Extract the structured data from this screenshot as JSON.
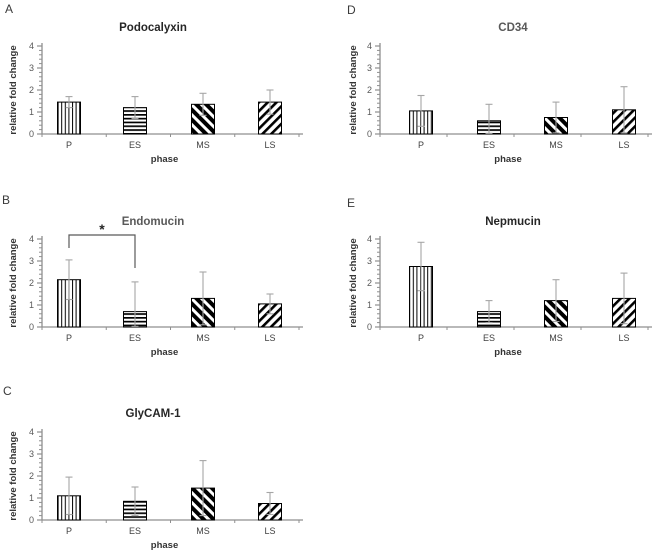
{
  "figure_background": "#ffffff",
  "colors": {
    "axis_line": "#8f8f8f",
    "error_bar": "#a6a6a6",
    "tick_label": "#595959",
    "category_label": "#404040",
    "axis_title": "#333333",
    "bar_fill": "#ffffff",
    "bar_stroke": "#000000",
    "significance_bracket": "#595959",
    "title_dark": "#262626",
    "title_gray": "#595959"
  },
  "chart_data": [
    {
      "type": "bar",
      "panel": "A",
      "title": "Podocalyxin",
      "title_color": "#262626",
      "categories": [
        "P",
        "ES",
        "MS",
        "LS"
      ],
      "values": [
        1.45,
        1.2,
        1.35,
        1.45
      ],
      "errors": [
        0.25,
        0.5,
        0.5,
        0.55
      ],
      "bar_patterns": [
        "vertical-stripes",
        "horizontal-stripes",
        "diagonal-down-bold-stripes",
        "diagonal-up-stripes"
      ],
      "xlabel": "phase",
      "ylabel": "relative fold change",
      "ylim": [
        0,
        4
      ],
      "yticks": [
        0,
        1,
        2,
        3,
        4
      ],
      "minor_tick_step": 0.2,
      "grid": false,
      "legend": false
    },
    {
      "type": "bar",
      "panel": "B",
      "title": "Endomucin",
      "title_color": "#595959",
      "categories": [
        "P",
        "ES",
        "MS",
        "LS"
      ],
      "values": [
        2.15,
        0.7,
        1.3,
        1.05
      ],
      "errors": [
        0.9,
        1.35,
        1.2,
        0.45
      ],
      "bar_patterns": [
        "vertical-stripes",
        "horizontal-stripes",
        "diagonal-down-bold-stripes",
        "diagonal-up-stripes"
      ],
      "xlabel": "phase",
      "ylabel": "relative fold change",
      "ylim": [
        0,
        4
      ],
      "yticks": [
        0,
        1,
        2,
        3,
        4
      ],
      "minor_tick_step": 0.2,
      "grid": false,
      "legend": false,
      "significance": {
        "from": "P",
        "to": "ES",
        "label": "*"
      }
    },
    {
      "type": "bar",
      "panel": "C",
      "title": "GlyCAM-1",
      "title_color": "#262626",
      "categories": [
        "P",
        "ES",
        "MS",
        "LS"
      ],
      "values": [
        1.1,
        0.85,
        1.45,
        0.75
      ],
      "errors": [
        0.85,
        0.65,
        1.25,
        0.5
      ],
      "bar_patterns": [
        "vertical-stripes",
        "horizontal-stripes",
        "diagonal-down-bold-stripes",
        "diagonal-up-stripes"
      ],
      "xlabel": "phase",
      "ylabel": "relative fold change",
      "ylim": [
        0,
        4
      ],
      "yticks": [
        0,
        1,
        2,
        3,
        4
      ],
      "minor_tick_step": 0.2,
      "grid": false,
      "legend": false
    },
    {
      "type": "bar",
      "panel": "D",
      "title": "CD34",
      "title_color": "#595959",
      "categories": [
        "P",
        "ES",
        "MS",
        "LS"
      ],
      "values": [
        1.05,
        0.6,
        0.75,
        1.1
      ],
      "errors": [
        0.7,
        0.75,
        0.7,
        1.05
      ],
      "bar_patterns": [
        "vertical-stripes",
        "horizontal-stripes",
        "diagonal-down-bold-stripes",
        "diagonal-up-stripes"
      ],
      "xlabel": "phase",
      "ylabel": "relative fold change",
      "ylim": [
        0,
        4
      ],
      "yticks": [
        0,
        1,
        2,
        3,
        4
      ],
      "minor_tick_step": 0.2,
      "grid": false,
      "legend": false
    },
    {
      "type": "bar",
      "panel": "E",
      "title": "Nepmucin",
      "title_color": "#262626",
      "categories": [
        "P",
        "ES",
        "MS",
        "LS"
      ],
      "values": [
        2.75,
        0.7,
        1.2,
        1.3
      ],
      "errors": [
        1.1,
        0.5,
        0.95,
        1.15
      ],
      "bar_patterns": [
        "vertical-stripes",
        "horizontal-stripes",
        "diagonal-down-bold-stripes",
        "diagonal-up-stripes"
      ],
      "xlabel": "phase",
      "ylabel": "relative fold change",
      "ylim": [
        0,
        4
      ],
      "yticks": [
        0,
        1,
        2,
        3,
        4
      ],
      "minor_tick_step": 0.2,
      "grid": false,
      "legend": false
    }
  ]
}
